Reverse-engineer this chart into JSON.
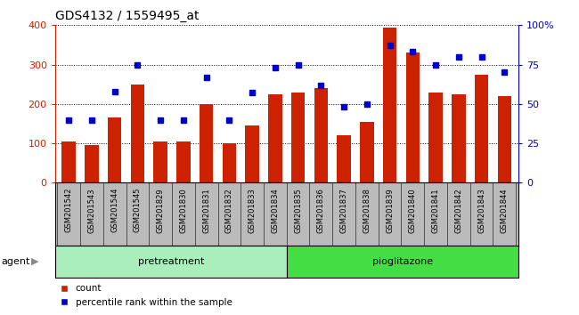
{
  "title": "GDS4132 / 1559495_at",
  "categories": [
    "GSM201542",
    "GSM201543",
    "GSM201544",
    "GSM201545",
    "GSM201829",
    "GSM201830",
    "GSM201831",
    "GSM201832",
    "GSM201833",
    "GSM201834",
    "GSM201835",
    "GSM201836",
    "GSM201837",
    "GSM201838",
    "GSM201839",
    "GSM201840",
    "GSM201841",
    "GSM201842",
    "GSM201843",
    "GSM201844"
  ],
  "bar_values": [
    105,
    95,
    165,
    250,
    105,
    105,
    200,
    100,
    145,
    225,
    230,
    240,
    120,
    155,
    395,
    330,
    230,
    225,
    275,
    220
  ],
  "scatter_values": [
    40,
    40,
    58,
    75,
    40,
    40,
    67,
    40,
    57,
    73,
    75,
    62,
    48,
    50,
    87,
    83,
    75,
    80,
    80,
    70
  ],
  "pretreatment_count": 10,
  "pioglitazone_count": 10,
  "bar_color": "#cc2200",
  "scatter_color": "#0000cc",
  "plot_bg_color": "#cccccc",
  "label_bg_color": "#bbbbbb",
  "pretreatment_color": "#aaeebb",
  "pioglitazone_color": "#44dd44",
  "agent_label": "agent",
  "pretreatment_label": "pretreatment",
  "pioglitazone_label": "pioglitazone",
  "legend_count": "count",
  "legend_percentile": "percentile rank within the sample",
  "ylim_left": [
    0,
    400
  ],
  "ylim_right": [
    0,
    100
  ],
  "yticks_left": [
    0,
    100,
    200,
    300,
    400
  ],
  "yticks_right": [
    0,
    25,
    50,
    75,
    100
  ],
  "ytick_labels_right": [
    "0",
    "25",
    "50",
    "75",
    "100%"
  ]
}
